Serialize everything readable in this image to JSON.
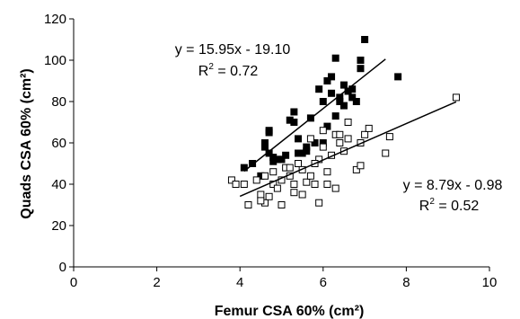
{
  "chart_data": {
    "type": "scatter",
    "xlabel": "Femur CSA 60% (cm²)",
    "ylabel": "Quads CSA 60% (cm²)",
    "xlim": [
      0,
      10
    ],
    "ylim": [
      0,
      120
    ],
    "xticks": [
      0,
      2,
      4,
      6,
      8,
      10
    ],
    "yticks": [
      0,
      20,
      40,
      60,
      80,
      100,
      120
    ],
    "grid": false,
    "series": [
      {
        "marker": "filled-square",
        "color": "#000000",
        "fit": {
          "equation": "y = 15.95x - 19.10",
          "r2_label": "R",
          "r2_value": " = 0.72",
          "slope": 15.95,
          "intercept": -19.1,
          "x_range": [
            4.1,
            7.5
          ]
        },
        "points": [
          [
            4.1,
            48
          ],
          [
            4.3,
            50
          ],
          [
            4.5,
            44
          ],
          [
            4.6,
            58
          ],
          [
            4.6,
            60
          ],
          [
            4.7,
            65
          ],
          [
            4.7,
            66
          ],
          [
            4.7,
            55
          ],
          [
            4.8,
            53
          ],
          [
            4.8,
            51
          ],
          [
            4.9,
            52
          ],
          [
            5.0,
            52
          ],
          [
            5.1,
            54
          ],
          [
            5.2,
            71
          ],
          [
            5.3,
            70
          ],
          [
            5.3,
            75
          ],
          [
            5.4,
            62
          ],
          [
            5.4,
            55
          ],
          [
            5.5,
            55
          ],
          [
            5.6,
            56
          ],
          [
            5.6,
            58
          ],
          [
            5.7,
            72
          ],
          [
            5.8,
            60
          ],
          [
            5.9,
            86
          ],
          [
            6.0,
            80
          ],
          [
            6.0,
            60
          ],
          [
            6.1,
            90
          ],
          [
            6.2,
            92
          ],
          [
            6.2,
            84
          ],
          [
            6.3,
            101
          ],
          [
            6.4,
            80
          ],
          [
            6.4,
            82
          ],
          [
            6.5,
            88
          ],
          [
            6.5,
            78
          ],
          [
            6.6,
            85
          ],
          [
            6.7,
            86
          ],
          [
            6.7,
            82
          ],
          [
            6.8,
            80
          ],
          [
            6.9,
            100
          ],
          [
            6.9,
            96
          ],
          [
            7.0,
            110
          ],
          [
            6.3,
            73
          ],
          [
            6.1,
            68
          ],
          [
            7.8,
            92
          ]
        ]
      },
      {
        "marker": "open-square",
        "color": "#000000",
        "fit": {
          "equation": "y = 8.79x - 0.98",
          "r2_label": "R",
          "r2_value": " = 0.52",
          "slope": 8.79,
          "intercept": -0.98,
          "x_range": [
            4.0,
            9.2
          ]
        },
        "points": [
          [
            3.8,
            42
          ],
          [
            3.9,
            40
          ],
          [
            4.1,
            40
          ],
          [
            4.2,
            30
          ],
          [
            4.4,
            42
          ],
          [
            4.5,
            35
          ],
          [
            4.6,
            31
          ],
          [
            4.6,
            44
          ],
          [
            4.7,
            34
          ],
          [
            4.8,
            40
          ],
          [
            4.8,
            46
          ],
          [
            4.9,
            38
          ],
          [
            5.0,
            30
          ],
          [
            5.0,
            42
          ],
          [
            5.1,
            48
          ],
          [
            5.2,
            44
          ],
          [
            5.3,
            36
          ],
          [
            5.3,
            40
          ],
          [
            5.4,
            50
          ],
          [
            5.5,
            35
          ],
          [
            5.5,
            47
          ],
          [
            5.6,
            41
          ],
          [
            5.7,
            44
          ],
          [
            5.7,
            62
          ],
          [
            5.8,
            40
          ],
          [
            5.9,
            52
          ],
          [
            5.9,
            31
          ],
          [
            6.0,
            58
          ],
          [
            6.0,
            66
          ],
          [
            6.1,
            40
          ],
          [
            6.2,
            54
          ],
          [
            6.3,
            38
          ],
          [
            6.3,
            64
          ],
          [
            6.4,
            60
          ],
          [
            6.4,
            64
          ],
          [
            6.5,
            56
          ],
          [
            6.6,
            62
          ],
          [
            6.6,
            70
          ],
          [
            6.8,
            47
          ],
          [
            6.9,
            49
          ],
          [
            6.9,
            60
          ],
          [
            7.0,
            64
          ],
          [
            7.1,
            67
          ],
          [
            7.5,
            55
          ],
          [
            7.6,
            63
          ],
          [
            9.2,
            82
          ],
          [
            5.2,
            48
          ],
          [
            5.8,
            50
          ],
          [
            6.1,
            46
          ],
          [
            4.5,
            32
          ]
        ]
      }
    ]
  }
}
